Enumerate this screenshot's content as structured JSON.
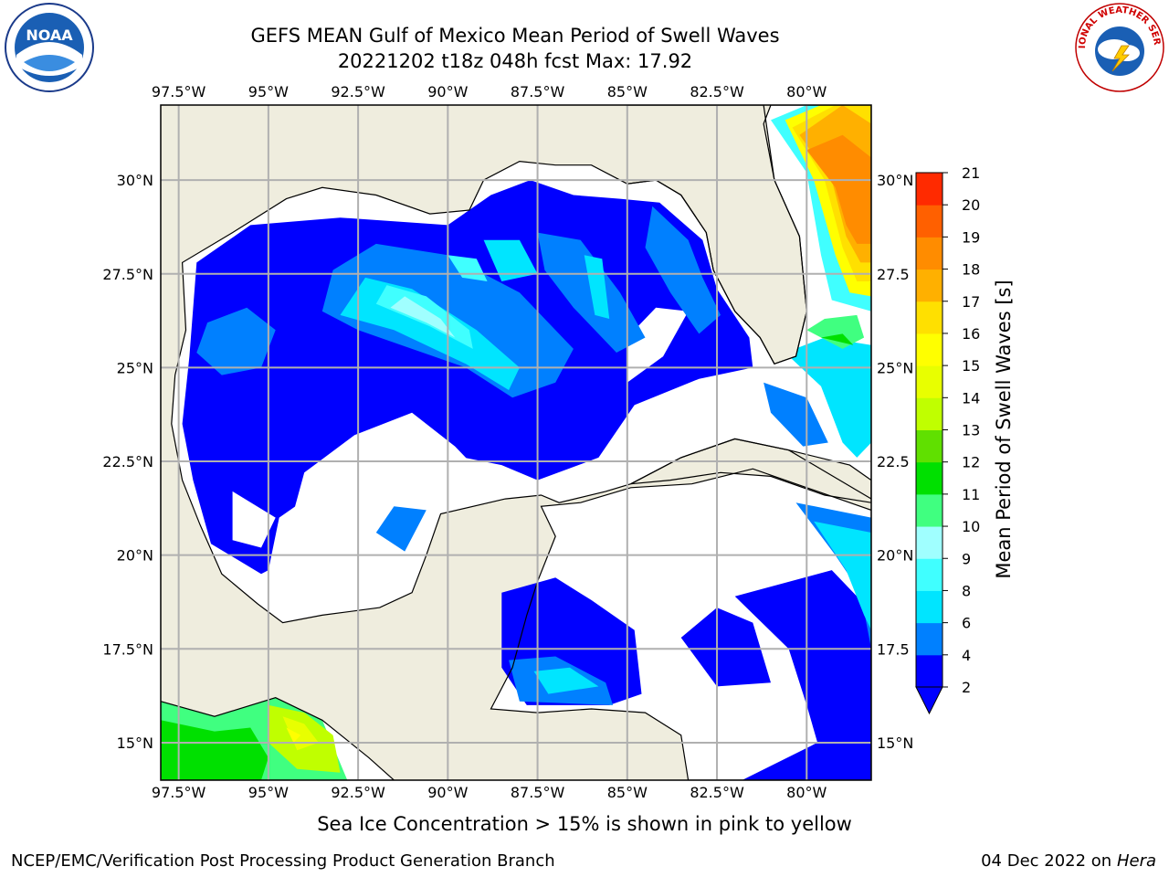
{
  "title_line1": "GEFS MEAN Gulf of Mexico Mean Period of Swell Waves",
  "title_line2": "20221202 t18z 048h fcst   Max: 17.92",
  "logos": {
    "left": "noaa-logo",
    "right": "national-weather-service-logo",
    "left_text": "NOAA",
    "right_text": "NATIONAL WEATHER SERVICE"
  },
  "map": {
    "projection": "cylindrical",
    "lon_range": [
      -98.0,
      -78.2
    ],
    "lat_range": [
      14.0,
      32.0
    ],
    "lon_ticks": [
      {
        "value": -97.5,
        "label": "97.5°W"
      },
      {
        "value": -95,
        "label": "95°W"
      },
      {
        "value": -92.5,
        "label": "92.5°W"
      },
      {
        "value": -90,
        "label": "90°W"
      },
      {
        "value": -87.5,
        "label": "87.5°W"
      },
      {
        "value": -85,
        "label": "85°W"
      },
      {
        "value": -82.5,
        "label": "82.5°W"
      },
      {
        "value": -80,
        "label": "80°W"
      }
    ],
    "lat_ticks_left": [
      {
        "value": 30,
        "label": "30°N"
      },
      {
        "value": 27.5,
        "label": "27.5°N"
      },
      {
        "value": 25,
        "label": "25°N"
      },
      {
        "value": 22.5,
        "label": "22.5°N"
      },
      {
        "value": 20,
        "label": "20°N"
      },
      {
        "value": 17.5,
        "label": "17.5°N"
      },
      {
        "value": 15,
        "label": "15°N"
      }
    ],
    "lat_ticks_right": [
      {
        "value": 30,
        "label": "30°N"
      },
      {
        "value": 27.5,
        "label": "27.5"
      },
      {
        "value": 25,
        "label": "25°N"
      },
      {
        "value": 22.5,
        "label": "22.5"
      },
      {
        "value": 20,
        "label": "20°N"
      },
      {
        "value": 17.5,
        "label": "17.5"
      },
      {
        "value": 15,
        "label": "15°N"
      }
    ],
    "colors": {
      "land": "#efedde",
      "ocean": "#ffffff",
      "grid": "#b0b0b0",
      "coast": "#000000"
    }
  },
  "colorbar": {
    "label": "Mean Period of Swell Waves [s]",
    "levels": [
      2,
      4,
      6,
      8,
      9,
      10,
      11,
      12,
      13,
      14,
      15,
      16,
      17,
      18,
      19,
      20,
      21
    ],
    "colors": [
      "#0000ff",
      "#0080ff",
      "#00e5ff",
      "#40ffff",
      "#a0ffff",
      "#40ff80",
      "#00e000",
      "#60e000",
      "#c0ff00",
      "#e8ff00",
      "#ffff00",
      "#ffe000",
      "#ffb000",
      "#ff8c00",
      "#ff6000",
      "#ff2a00",
      "#ff0000"
    ],
    "under_color": "#0000ff"
  },
  "footnote": "Sea Ice Concentration > 15% is shown in pink to yellow",
  "credit": "NCEP/EMC/Verification Post Processing Product Generation Branch",
  "date_prefix": "04 Dec 2022 on",
  "date_host": "Hera"
}
